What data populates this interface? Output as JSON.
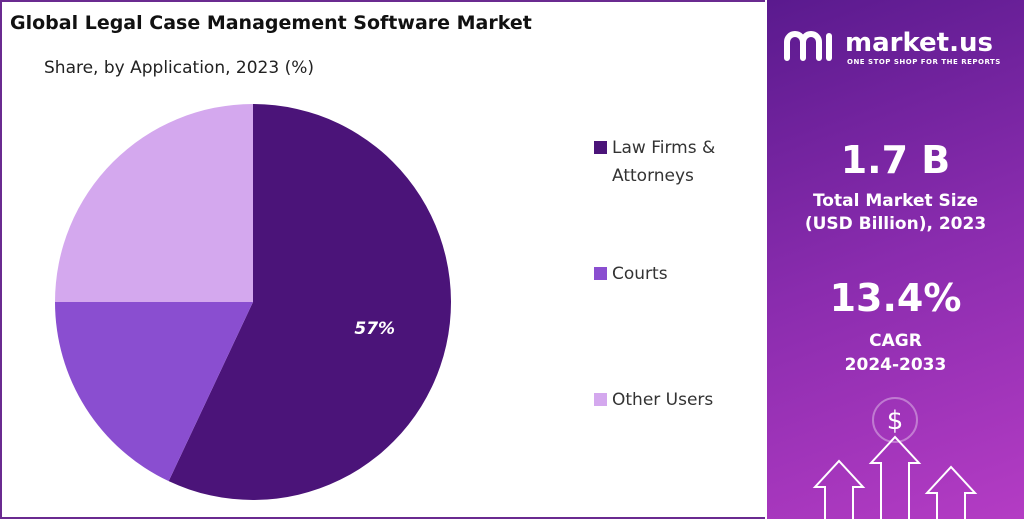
{
  "chart_data": {
    "type": "pie",
    "title": "Global Legal Case Management Software Market",
    "subtitle": "Share, by Application, 2023 (%)",
    "categories": [
      "Law Firms & Attorneys",
      "Courts",
      "Other Users"
    ],
    "values": [
      57,
      18,
      25
    ],
    "value_labels": [
      "57%",
      null,
      null
    ],
    "colors": [
      "#4b1479",
      "#8a4ed0",
      "#d4a8ee"
    ]
  },
  "panel": {
    "brand": "market.us",
    "tagline": "ONE STOP SHOP FOR THE REPORTS",
    "market_size": "1.7 B",
    "market_size_label": "Total Market Size (USD Billion), 2023",
    "cagr": "13.4%",
    "cagr_label": "CAGR",
    "cagr_period": "2024-2033"
  }
}
